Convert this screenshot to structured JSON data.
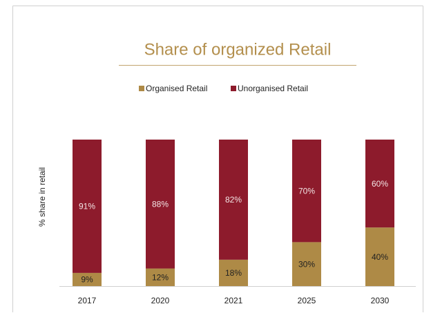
{
  "chart_data": {
    "type": "stacked_bar",
    "title": "Share of organized Retail",
    "y_label": "% share in retail",
    "categories": [
      "2017",
      "2020",
      "2021",
      "2025",
      "2030"
    ],
    "series": [
      {
        "name": "Organised Retail",
        "color": "#ae8a46",
        "values": [
          9,
          12,
          18,
          30,
          40
        ],
        "value_labels": [
          "9%",
          "12%",
          "18%",
          "30%",
          "40%"
        ]
      },
      {
        "name": "Unorganised Retail",
        "color": "#8d1b2c",
        "values": [
          91,
          88,
          82,
          70,
          60
        ],
        "value_labels": [
          "91%",
          "88%",
          "82%",
          "70%",
          "60%"
        ]
      }
    ],
    "ylim": [
      0,
      100
    ],
    "legend": "top"
  }
}
